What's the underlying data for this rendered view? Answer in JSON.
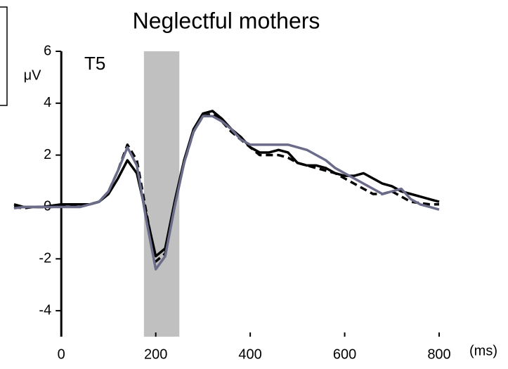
{
  "chart_data": {
    "type": "line",
    "title": "Neglectful mothers",
    "annotation": "T5",
    "ylabel": "μV",
    "xlabel": "(ms)",
    "x": [
      -100,
      -80,
      -60,
      -40,
      -20,
      0,
      20,
      40,
      60,
      80,
      100,
      120,
      140,
      160,
      180,
      200,
      220,
      240,
      260,
      280,
      300,
      320,
      340,
      360,
      380,
      400,
      420,
      440,
      460,
      480,
      500,
      520,
      540,
      560,
      580,
      600,
      620,
      640,
      660,
      680,
      700,
      720,
      740,
      760,
      780,
      800
    ],
    "series": [
      {
        "color": "#000000",
        "style": "solid",
        "values": [
          0.1,
          0,
          0,
          0,
          0.05,
          0.1,
          0.1,
          0.1,
          0.1,
          0.2,
          0.5,
          1.1,
          1.8,
          1.3,
          -0.3,
          -1.9,
          -1.6,
          0.2,
          1.8,
          3.0,
          3.6,
          3.7,
          3.4,
          3.0,
          2.7,
          2.3,
          2.1,
          2.1,
          2.2,
          2.1,
          1.7,
          1.6,
          1.6,
          1.5,
          1.3,
          1.2,
          1.2,
          1.3,
          1.1,
          0.9,
          0.8,
          0.6,
          0.5,
          0.4,
          0.3,
          0.2
        ]
      },
      {
        "color": "#000000",
        "style": "dashed",
        "values": [
          0,
          -0.05,
          0,
          0,
          0,
          0.05,
          0.05,
          0.05,
          0.1,
          0.2,
          0.6,
          1.4,
          2.4,
          1.8,
          -0.2,
          -2.1,
          -1.8,
          0.1,
          1.7,
          2.9,
          3.5,
          3.6,
          3.3,
          2.9,
          2.6,
          2.3,
          2.0,
          2.0,
          2.0,
          1.9,
          1.7,
          1.6,
          1.5,
          1.4,
          1.3,
          1.1,
          0.9,
          0.7,
          0.5,
          0.5,
          0.6,
          0.4,
          0.2,
          0.15,
          0.1,
          0.1
        ]
      },
      {
        "color": "#6b6b8a",
        "style": "solid",
        "values": [
          -0.05,
          0,
          0,
          0,
          0,
          0,
          0,
          0,
          0.1,
          0.2,
          0.6,
          1.4,
          2.3,
          1.6,
          -0.5,
          -2.4,
          -1.9,
          0,
          1.7,
          2.9,
          3.5,
          3.5,
          3.3,
          3.0,
          2.6,
          2.4,
          2.4,
          2.4,
          2.4,
          2.4,
          2.3,
          2.2,
          2.0,
          1.8,
          1.5,
          1.3,
          1.1,
          0.9,
          0.7,
          0.5,
          0.6,
          0.7,
          0.3,
          0.1,
          0,
          -0.1
        ]
      }
    ],
    "shaded_region": [
      175,
      250
    ],
    "xlim": [
      -100,
      800
    ],
    "xticks": [
      0,
      200,
      400,
      600,
      800
    ],
    "ylim": [
      -5,
      6
    ],
    "yticks": [
      6,
      4,
      2,
      0,
      -2,
      -4
    ]
  }
}
